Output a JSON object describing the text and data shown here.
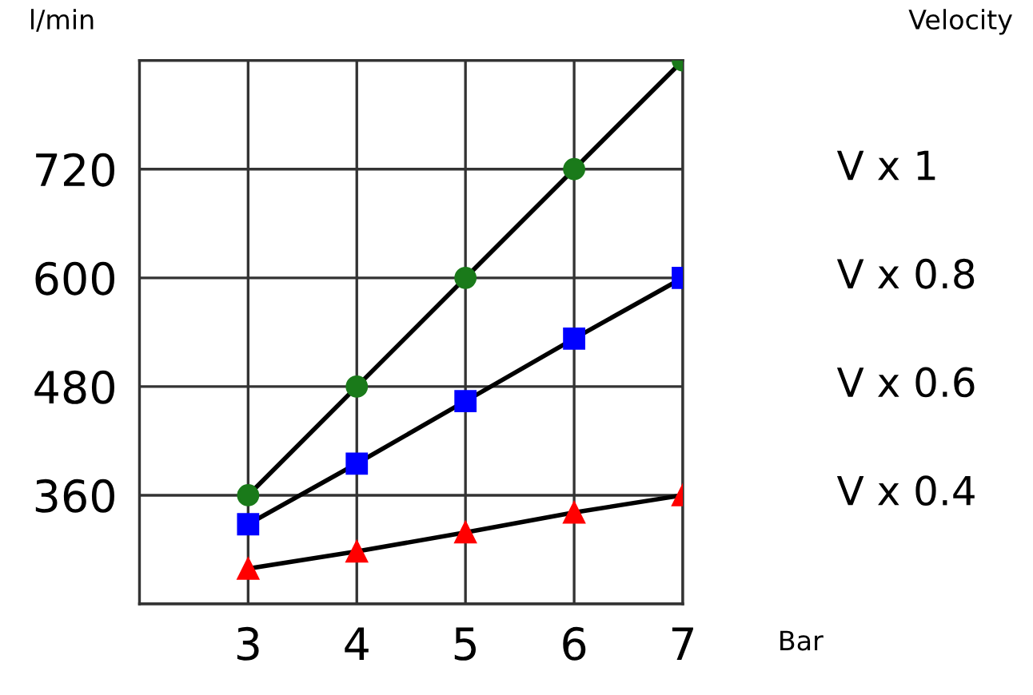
{
  "chart_data": {
    "type": "line",
    "ylabel": "l/min",
    "xlabel": "Bar",
    "x": [
      3,
      4,
      5,
      6,
      7
    ],
    "series": [
      {
        "color": "#1a7a1a",
        "marker": "circle",
        "values": [
          360,
          480,
          600,
          720,
          840
        ]
      },
      {
        "color": "#0000ff",
        "marker": "square",
        "values": [
          328,
          395,
          464,
          533,
          600
        ]
      },
      {
        "color": "#ff0000",
        "marker": "triangle",
        "values": [
          279,
          298,
          319,
          341,
          360
        ]
      }
    ],
    "xlim": [
      2,
      7
    ],
    "ylim": [
      240,
      840
    ],
    "xticks": [
      {
        "value": 2,
        "label": null
      },
      3,
      4,
      5,
      6,
      7
    ],
    "yticks": [
      {
        "value": 240,
        "label": null
      },
      360,
      480,
      600,
      720,
      {
        "value": 840,
        "label": null
      }
    ],
    "annotations": [
      "Velocity",
      "V x 1",
      "V x 0.8",
      "V x 0.6",
      "V x 0.4"
    ],
    "grid": true,
    "line_style": "solid"
  }
}
